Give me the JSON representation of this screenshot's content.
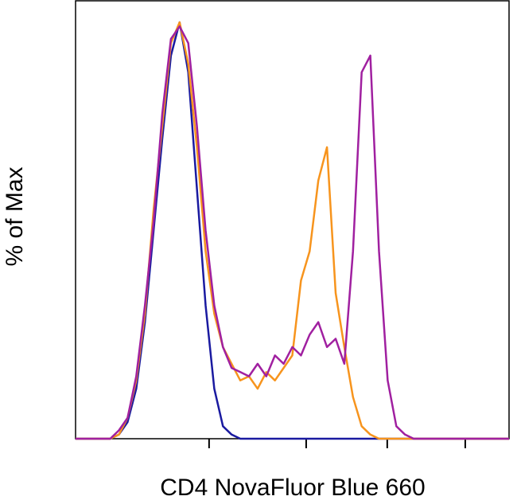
{
  "chart_data": {
    "type": "line",
    "x_label": "CD4 NovaFluor Blue 660",
    "y_label": "% of Max",
    "x": [
      0,
      2,
      4,
      6,
      8,
      10,
      12,
      14,
      16,
      18,
      20,
      22,
      24,
      26,
      28,
      30,
      32,
      34,
      36,
      38,
      40,
      42,
      44,
      46,
      48,
      50,
      52,
      54,
      56,
      58,
      60,
      62,
      64,
      66,
      68,
      70,
      72,
      74,
      76,
      78,
      80,
      82,
      84,
      86,
      88,
      90,
      92,
      94,
      96,
      98,
      100
    ],
    "series": [
      {
        "color": "#1a1aa0",
        "values": [
          0,
          0,
          0,
          0,
          0,
          1,
          4,
          12,
          28,
          50,
          72,
          92,
          100,
          88,
          60,
          32,
          12,
          3,
          1,
          0,
          0,
          0,
          0,
          0,
          0,
          0,
          0,
          0,
          0,
          0,
          0,
          0,
          0,
          0,
          0,
          0,
          0,
          0,
          0,
          0,
          0,
          0,
          0,
          0,
          0,
          0,
          0,
          0,
          0,
          0,
          0
        ]
      },
      {
        "color": "#f7941d",
        "values": [
          0,
          0,
          0,
          0,
          0,
          1,
          5,
          14,
          30,
          55,
          75,
          95,
          100,
          90,
          70,
          45,
          30,
          22,
          18,
          14,
          15,
          12,
          16,
          14,
          17,
          20,
          38,
          45,
          62,
          70,
          35,
          22,
          10,
          3,
          1,
          0,
          0,
          0,
          0,
          0,
          0,
          0,
          0,
          0,
          0,
          0,
          0,
          0,
          0,
          0,
          0
        ]
      },
      {
        "color": "#a020a0",
        "values": [
          0,
          0,
          0,
          0,
          0,
          2,
          5,
          15,
          32,
          52,
          78,
          96,
          99,
          95,
          75,
          50,
          32,
          22,
          17,
          16,
          15,
          18,
          15,
          20,
          18,
          22,
          20,
          25,
          28,
          22,
          24,
          18,
          45,
          88,
          92,
          45,
          14,
          3,
          1,
          0,
          0,
          0,
          0,
          0,
          0,
          0,
          0,
          0,
          0,
          0,
          0
        ]
      }
    ],
    "xlim": [
      0,
      100
    ],
    "ylim": [
      0,
      100
    ],
    "xticks": [
      30.8,
      53.2,
      71.9,
      89.9
    ]
  }
}
